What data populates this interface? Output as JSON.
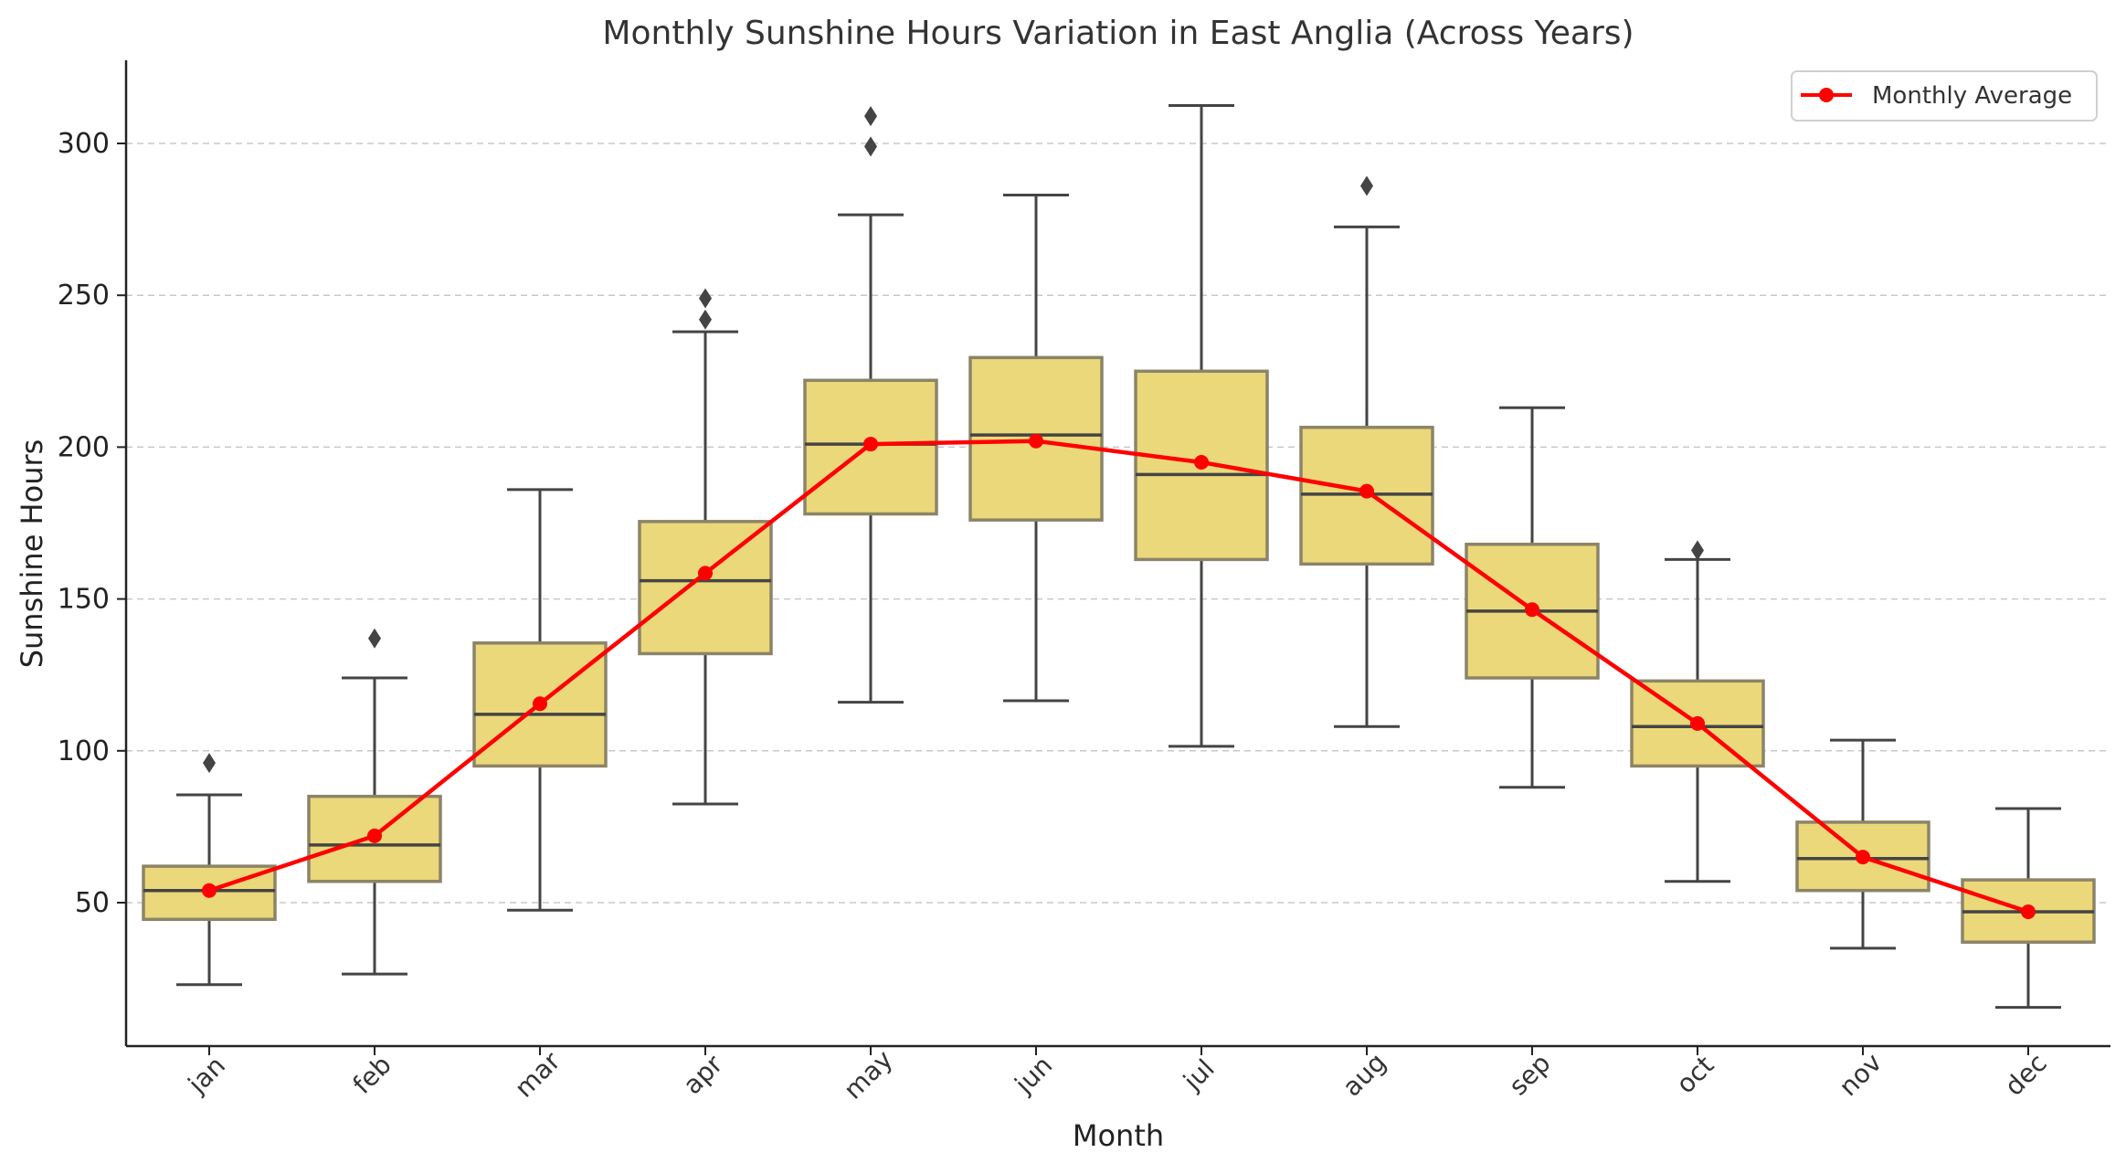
{
  "chart_data": {
    "type": "box",
    "title": "Monthly Sunshine Hours Variation in East Anglia (Across Years)",
    "xlabel": "Month",
    "ylabel": "Sunshine Hours",
    "ylim": [
      0,
      325
    ],
    "yticks": [
      50,
      100,
      150,
      200,
      250,
      300
    ],
    "grid": "horizontal dashed",
    "legend_position": "top-right",
    "categories": [
      "jan",
      "feb",
      "mar",
      "apr",
      "may",
      "jun",
      "jul",
      "aug",
      "sep",
      "oct",
      "nov",
      "dec"
    ],
    "boxes": [
      {
        "category": "jan",
        "whisker_low": 23,
        "q1": 44.5,
        "median": 54,
        "q3": 62,
        "whisker_high": 85.5,
        "outliers": [
          96
        ]
      },
      {
        "category": "feb",
        "whisker_low": 26.5,
        "q1": 57,
        "median": 69,
        "q3": 85,
        "whisker_high": 124,
        "outliers": [
          137
        ]
      },
      {
        "category": "mar",
        "whisker_low": 47.5,
        "q1": 95,
        "median": 112,
        "q3": 135.5,
        "whisker_high": 186,
        "outliers": []
      },
      {
        "category": "apr",
        "whisker_low": 82.5,
        "q1": 132,
        "median": 156,
        "q3": 175.5,
        "whisker_high": 238,
        "outliers": [
          242,
          249
        ]
      },
      {
        "category": "may",
        "whisker_low": 116,
        "q1": 178,
        "median": 201,
        "q3": 222,
        "whisker_high": 276.5,
        "outliers": [
          299,
          309
        ]
      },
      {
        "category": "jun",
        "whisker_low": 116.5,
        "q1": 176,
        "median": 204,
        "q3": 229.5,
        "whisker_high": 283,
        "outliers": []
      },
      {
        "category": "jul",
        "whisker_low": 101.5,
        "q1": 163,
        "median": 191,
        "q3": 225,
        "whisker_high": 312.5,
        "outliers": []
      },
      {
        "category": "aug",
        "whisker_low": 108,
        "q1": 161.5,
        "median": 184.5,
        "q3": 206.5,
        "whisker_high": 272.5,
        "outliers": [
          286
        ]
      },
      {
        "category": "sep",
        "whisker_low": 88,
        "q1": 124,
        "median": 146,
        "q3": 168,
        "whisker_high": 213,
        "outliers": []
      },
      {
        "category": "oct",
        "whisker_low": 57,
        "q1": 95,
        "median": 108,
        "q3": 123,
        "whisker_high": 163,
        "outliers": [
          166
        ]
      },
      {
        "category": "nov",
        "whisker_low": 35,
        "q1": 54,
        "median": 64.5,
        "q3": 76.5,
        "whisker_high": 103.5,
        "outliers": []
      },
      {
        "category": "dec",
        "whisker_low": 15.5,
        "q1": 37,
        "median": 47,
        "q3": 57.5,
        "whisker_high": 81,
        "outliers": []
      }
    ],
    "series": [
      {
        "name": "Monthly Average",
        "type": "line",
        "values": [
          54,
          72,
          115.5,
          158.5,
          201,
          202,
          195,
          185.5,
          146.5,
          109,
          65,
          47
        ]
      }
    ],
    "colors": {
      "box_fill": "#ebd87a",
      "box_edge": "#8c8468",
      "whisker": "#444444",
      "median": "#444444",
      "outlier": "#444444",
      "average_line": "#ff0000",
      "grid": "#c8c8c8",
      "axis": "#222222"
    }
  }
}
